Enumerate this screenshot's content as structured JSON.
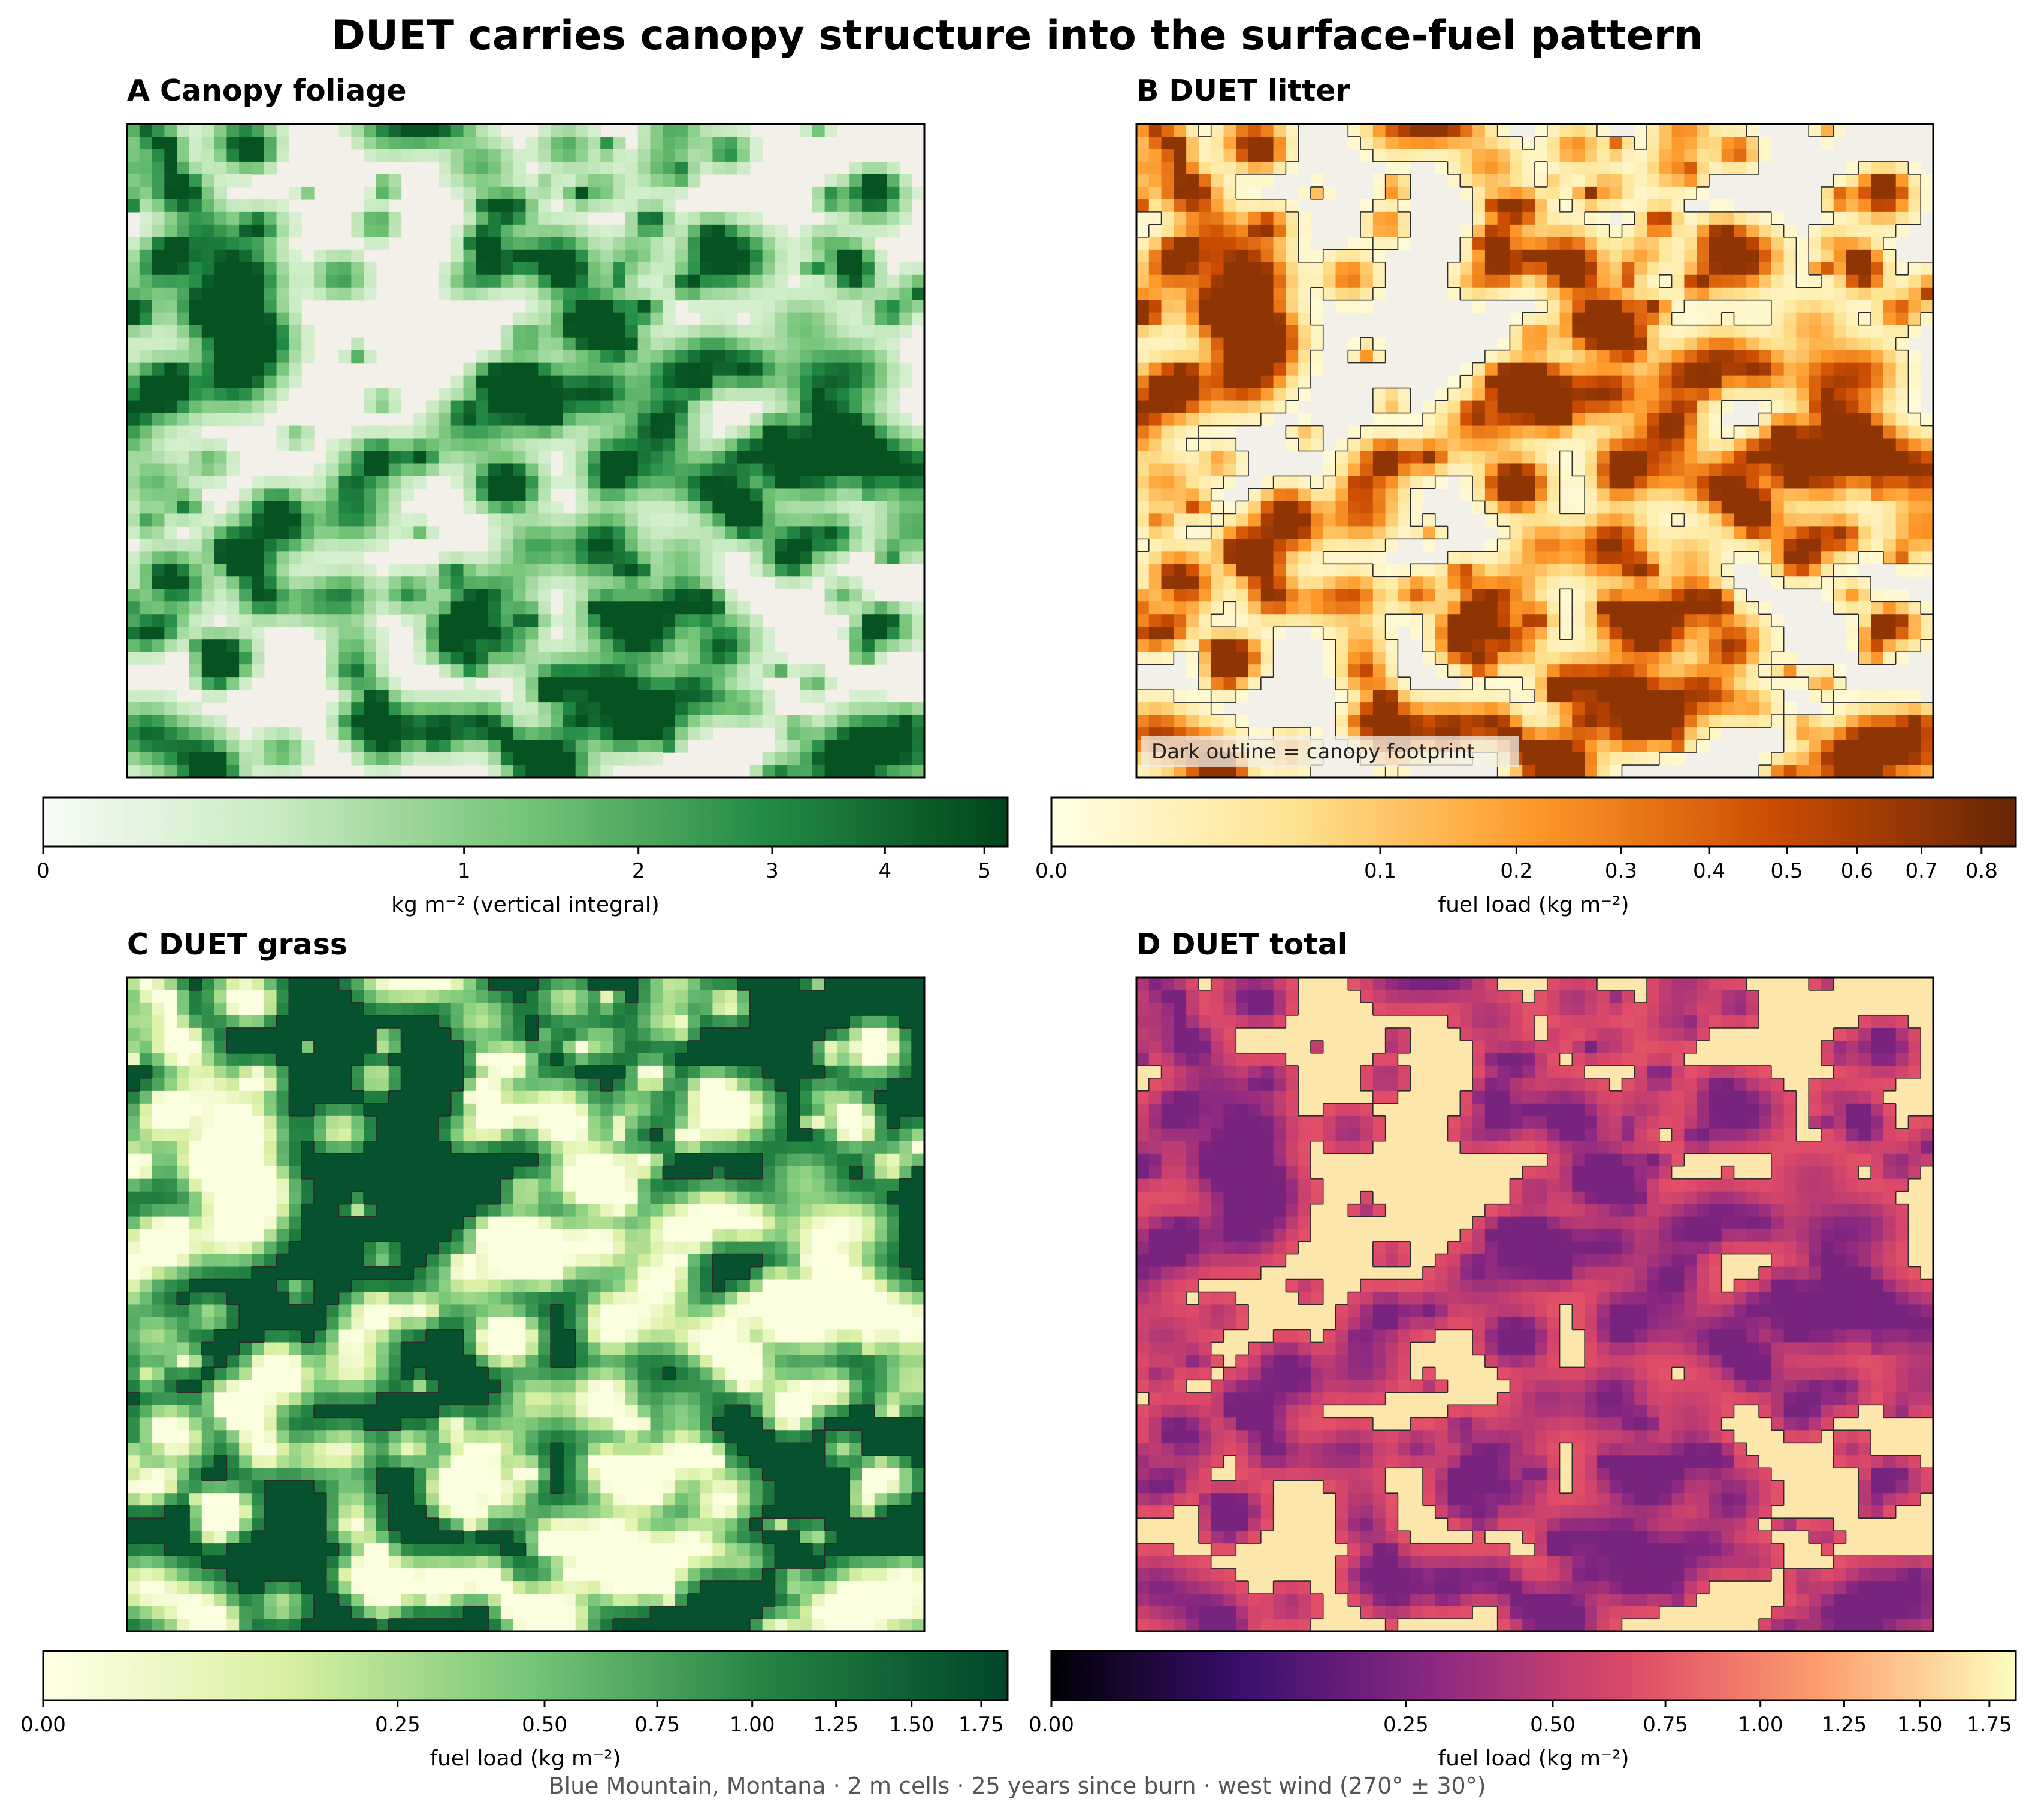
{
  "figure": {
    "title": "DUET carries canopy structure into the surface-fuel pattern",
    "caption": "Blue Mountain, Montana · 2 m cells · 25 years since burn · west wind (270° ± 30°)"
  },
  "colors": {
    "background": "#f2f0e8",
    "outline": "#2b2b2b",
    "greens": [
      "#f7fcf5",
      "#c7e9c0",
      "#74c476",
      "#238b45",
      "#00441b"
    ],
    "ylorbr": [
      "#ffffe5",
      "#fee391",
      "#fe9929",
      "#cc4c02",
      "#662506"
    ],
    "ylgn": [
      "#ffffe5",
      "#d9f0a3",
      "#78c679",
      "#238443",
      "#004529"
    ],
    "magma": [
      "#000004",
      "#3b0f70",
      "#8c2981",
      "#de4968",
      "#fe9f6d",
      "#fcfdbf"
    ]
  },
  "chart_data": [
    {
      "type": "heatmap",
      "panel": "A",
      "title": "A  Canopy foliage",
      "colormap": "Greens",
      "norm": "power",
      "vmin": 0,
      "vmax": 5.25,
      "colorbar": {
        "label": "kg m⁻² (vertical integral)",
        "ticks": [
          0,
          1,
          2,
          3,
          4,
          5
        ],
        "tick_labels": [
          "0",
          "1",
          "2",
          "3",
          "4",
          "5"
        ]
      },
      "outline": false,
      "annotation": ""
    },
    {
      "type": "heatmap",
      "panel": "B",
      "title": "B  DUET litter",
      "colormap": "YlOrBr",
      "norm": "power",
      "vmin": 0,
      "vmax": 0.86,
      "colorbar": {
        "label": "fuel load (kg m⁻²)",
        "ticks": [
          0.0,
          0.1,
          0.2,
          0.3,
          0.4,
          0.5,
          0.6,
          0.7,
          0.8
        ],
        "tick_labels": [
          "0.0",
          "0.1",
          "0.2",
          "0.3",
          "0.4",
          "0.5",
          "0.6",
          "0.7",
          "0.8"
        ]
      },
      "outline": true,
      "annotation": "Dark outline = canopy footprint"
    },
    {
      "type": "heatmap",
      "panel": "C",
      "title": "C  DUET grass",
      "colormap": "YlGn",
      "norm": "power",
      "vmin": 0,
      "vmax": 1.85,
      "colorbar": {
        "label": "fuel load (kg m⁻²)",
        "ticks": [
          0.0,
          0.25,
          0.5,
          0.75,
          1.0,
          1.25,
          1.5,
          1.75
        ],
        "tick_labels": [
          "0.00",
          "0.25",
          "0.50",
          "0.75",
          "1.00",
          "1.25",
          "1.50",
          "1.75"
        ]
      },
      "outline": true,
      "annotation": ""
    },
    {
      "type": "heatmap",
      "panel": "D",
      "title": "D  DUET total",
      "colormap": "magma",
      "norm": "power",
      "vmin": 0,
      "vmax": 1.85,
      "colorbar": {
        "label": "fuel load (kg m⁻²)",
        "ticks": [
          0.0,
          0.25,
          0.5,
          0.75,
          1.0,
          1.25,
          1.5,
          1.75
        ],
        "tick_labels": [
          "0.00",
          "0.25",
          "0.50",
          "0.75",
          "1.00",
          "1.25",
          "1.50",
          "1.75"
        ]
      },
      "outline": true,
      "annotation": ""
    }
  ]
}
